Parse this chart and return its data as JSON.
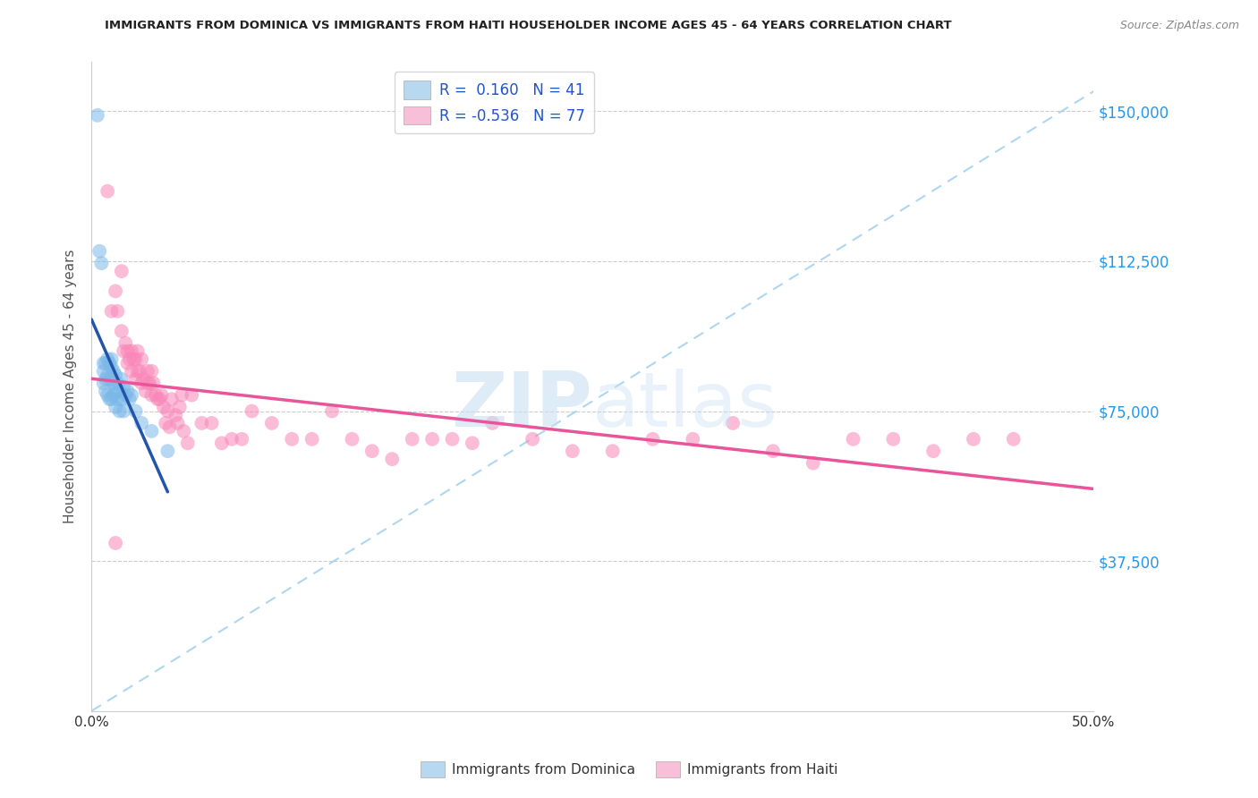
{
  "title": "IMMIGRANTS FROM DOMINICA VS IMMIGRANTS FROM HAITI HOUSEHOLDER INCOME AGES 45 - 64 YEARS CORRELATION CHART",
  "source": "Source: ZipAtlas.com",
  "ylabel": "Householder Income Ages 45 - 64 years",
  "xlim": [
    0.0,
    0.5
  ],
  "ylim": [
    0,
    162500
  ],
  "yticks": [
    0,
    37500,
    75000,
    112500,
    150000
  ],
  "ytick_labels": [
    "",
    "$37,500",
    "$75,000",
    "$112,500",
    "$150,000"
  ],
  "xticks": [
    0.0,
    0.1,
    0.2,
    0.3,
    0.4,
    0.5
  ],
  "xtick_labels": [
    "0.0%",
    "",
    "",
    "",
    "",
    "50.0%"
  ],
  "dominica_color": "#7ab8e8",
  "haiti_color": "#f986b8",
  "trendline_blue": "#2255aa",
  "trendline_pink": "#e8559a",
  "dashed_color": "#99ccee",
  "dominica_points_x": [
    0.003,
    0.004,
    0.005,
    0.006,
    0.006,
    0.006,
    0.007,
    0.007,
    0.007,
    0.008,
    0.008,
    0.008,
    0.009,
    0.009,
    0.009,
    0.01,
    0.01,
    0.01,
    0.01,
    0.011,
    0.011,
    0.011,
    0.012,
    0.012,
    0.012,
    0.013,
    0.013,
    0.014,
    0.014,
    0.015,
    0.015,
    0.016,
    0.016,
    0.017,
    0.018,
    0.019,
    0.02,
    0.022,
    0.025,
    0.03,
    0.038
  ],
  "dominica_points_y": [
    149000,
    115000,
    112000,
    87000,
    85000,
    82000,
    87000,
    83000,
    80000,
    88000,
    84000,
    79000,
    87000,
    83000,
    78000,
    88000,
    86000,
    83000,
    78000,
    85000,
    82000,
    79000,
    84000,
    80000,
    76000,
    82000,
    78000,
    80000,
    75000,
    83000,
    78000,
    81000,
    75000,
    79000,
    80000,
    78000,
    79000,
    75000,
    72000,
    70000,
    65000
  ],
  "haiti_points_x": [
    0.008,
    0.01,
    0.012,
    0.013,
    0.015,
    0.015,
    0.016,
    0.017,
    0.018,
    0.018,
    0.019,
    0.02,
    0.02,
    0.021,
    0.022,
    0.022,
    0.023,
    0.023,
    0.024,
    0.025,
    0.025,
    0.026,
    0.027,
    0.028,
    0.028,
    0.029,
    0.03,
    0.03,
    0.031,
    0.032,
    0.033,
    0.034,
    0.035,
    0.036,
    0.037,
    0.038,
    0.039,
    0.04,
    0.042,
    0.043,
    0.044,
    0.045,
    0.046,
    0.048,
    0.05,
    0.055,
    0.06,
    0.065,
    0.07,
    0.075,
    0.08,
    0.09,
    0.1,
    0.11,
    0.12,
    0.13,
    0.14,
    0.15,
    0.16,
    0.17,
    0.18,
    0.19,
    0.2,
    0.22,
    0.24,
    0.26,
    0.28,
    0.3,
    0.32,
    0.34,
    0.36,
    0.38,
    0.4,
    0.42,
    0.44,
    0.46,
    0.012
  ],
  "haiti_points_y": [
    130000,
    100000,
    105000,
    100000,
    110000,
    95000,
    90000,
    92000,
    90000,
    87000,
    88000,
    90000,
    85000,
    88000,
    88000,
    83000,
    90000,
    85000,
    85000,
    88000,
    82000,
    83000,
    80000,
    85000,
    82000,
    82000,
    85000,
    79000,
    82000,
    79000,
    78000,
    78000,
    79000,
    76000,
    72000,
    75000,
    71000,
    78000,
    74000,
    72000,
    76000,
    79000,
    70000,
    67000,
    79000,
    72000,
    72000,
    67000,
    68000,
    68000,
    75000,
    72000,
    68000,
    68000,
    75000,
    68000,
    65000,
    63000,
    68000,
    68000,
    68000,
    67000,
    72000,
    68000,
    65000,
    65000,
    68000,
    68000,
    72000,
    65000,
    62000,
    68000,
    68000,
    65000,
    68000,
    68000,
    42000
  ],
  "dashed_line_x": [
    0.0,
    0.5
  ],
  "dashed_line_y": [
    0,
    155000
  ],
  "watermark_zip": "ZIP",
  "watermark_atlas": "atlas"
}
